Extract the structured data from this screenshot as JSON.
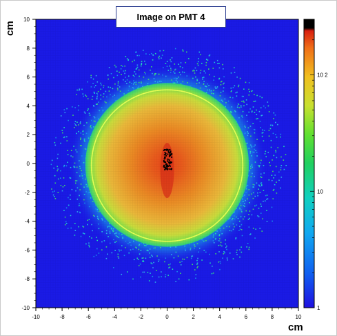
{
  "chart_data": {
    "type": "heatmap",
    "title": "Image on PMT 4",
    "xlabel": "cm",
    "ylabel": "cm",
    "xlim": [
      -10,
      10
    ],
    "ylim": [
      -10,
      10
    ],
    "x_ticks": [
      -10,
      -8,
      -6,
      -4,
      -2,
      0,
      2,
      4,
      6,
      8,
      10
    ],
    "y_ticks": [
      -10,
      -8,
      -6,
      -4,
      -2,
      0,
      2,
      4,
      6,
      8,
      10
    ],
    "colorbar": {
      "scale": "log",
      "range": [
        1,
        300
      ],
      "tick_labels": [
        "1",
        "10",
        "10 2"
      ],
      "tick_values": [
        1,
        10,
        100
      ]
    },
    "circle": {
      "center": [
        0,
        0
      ],
      "radius": 5.5,
      "color": "#e8ff55"
    },
    "distribution": {
      "center": [
        0,
        0
      ],
      "core_radius": 5.5,
      "hot_spot": [
        0,
        0
      ]
    },
    "colors": {
      "background": "#2020f0",
      "plot_outer": "#1a1ae6"
    }
  }
}
